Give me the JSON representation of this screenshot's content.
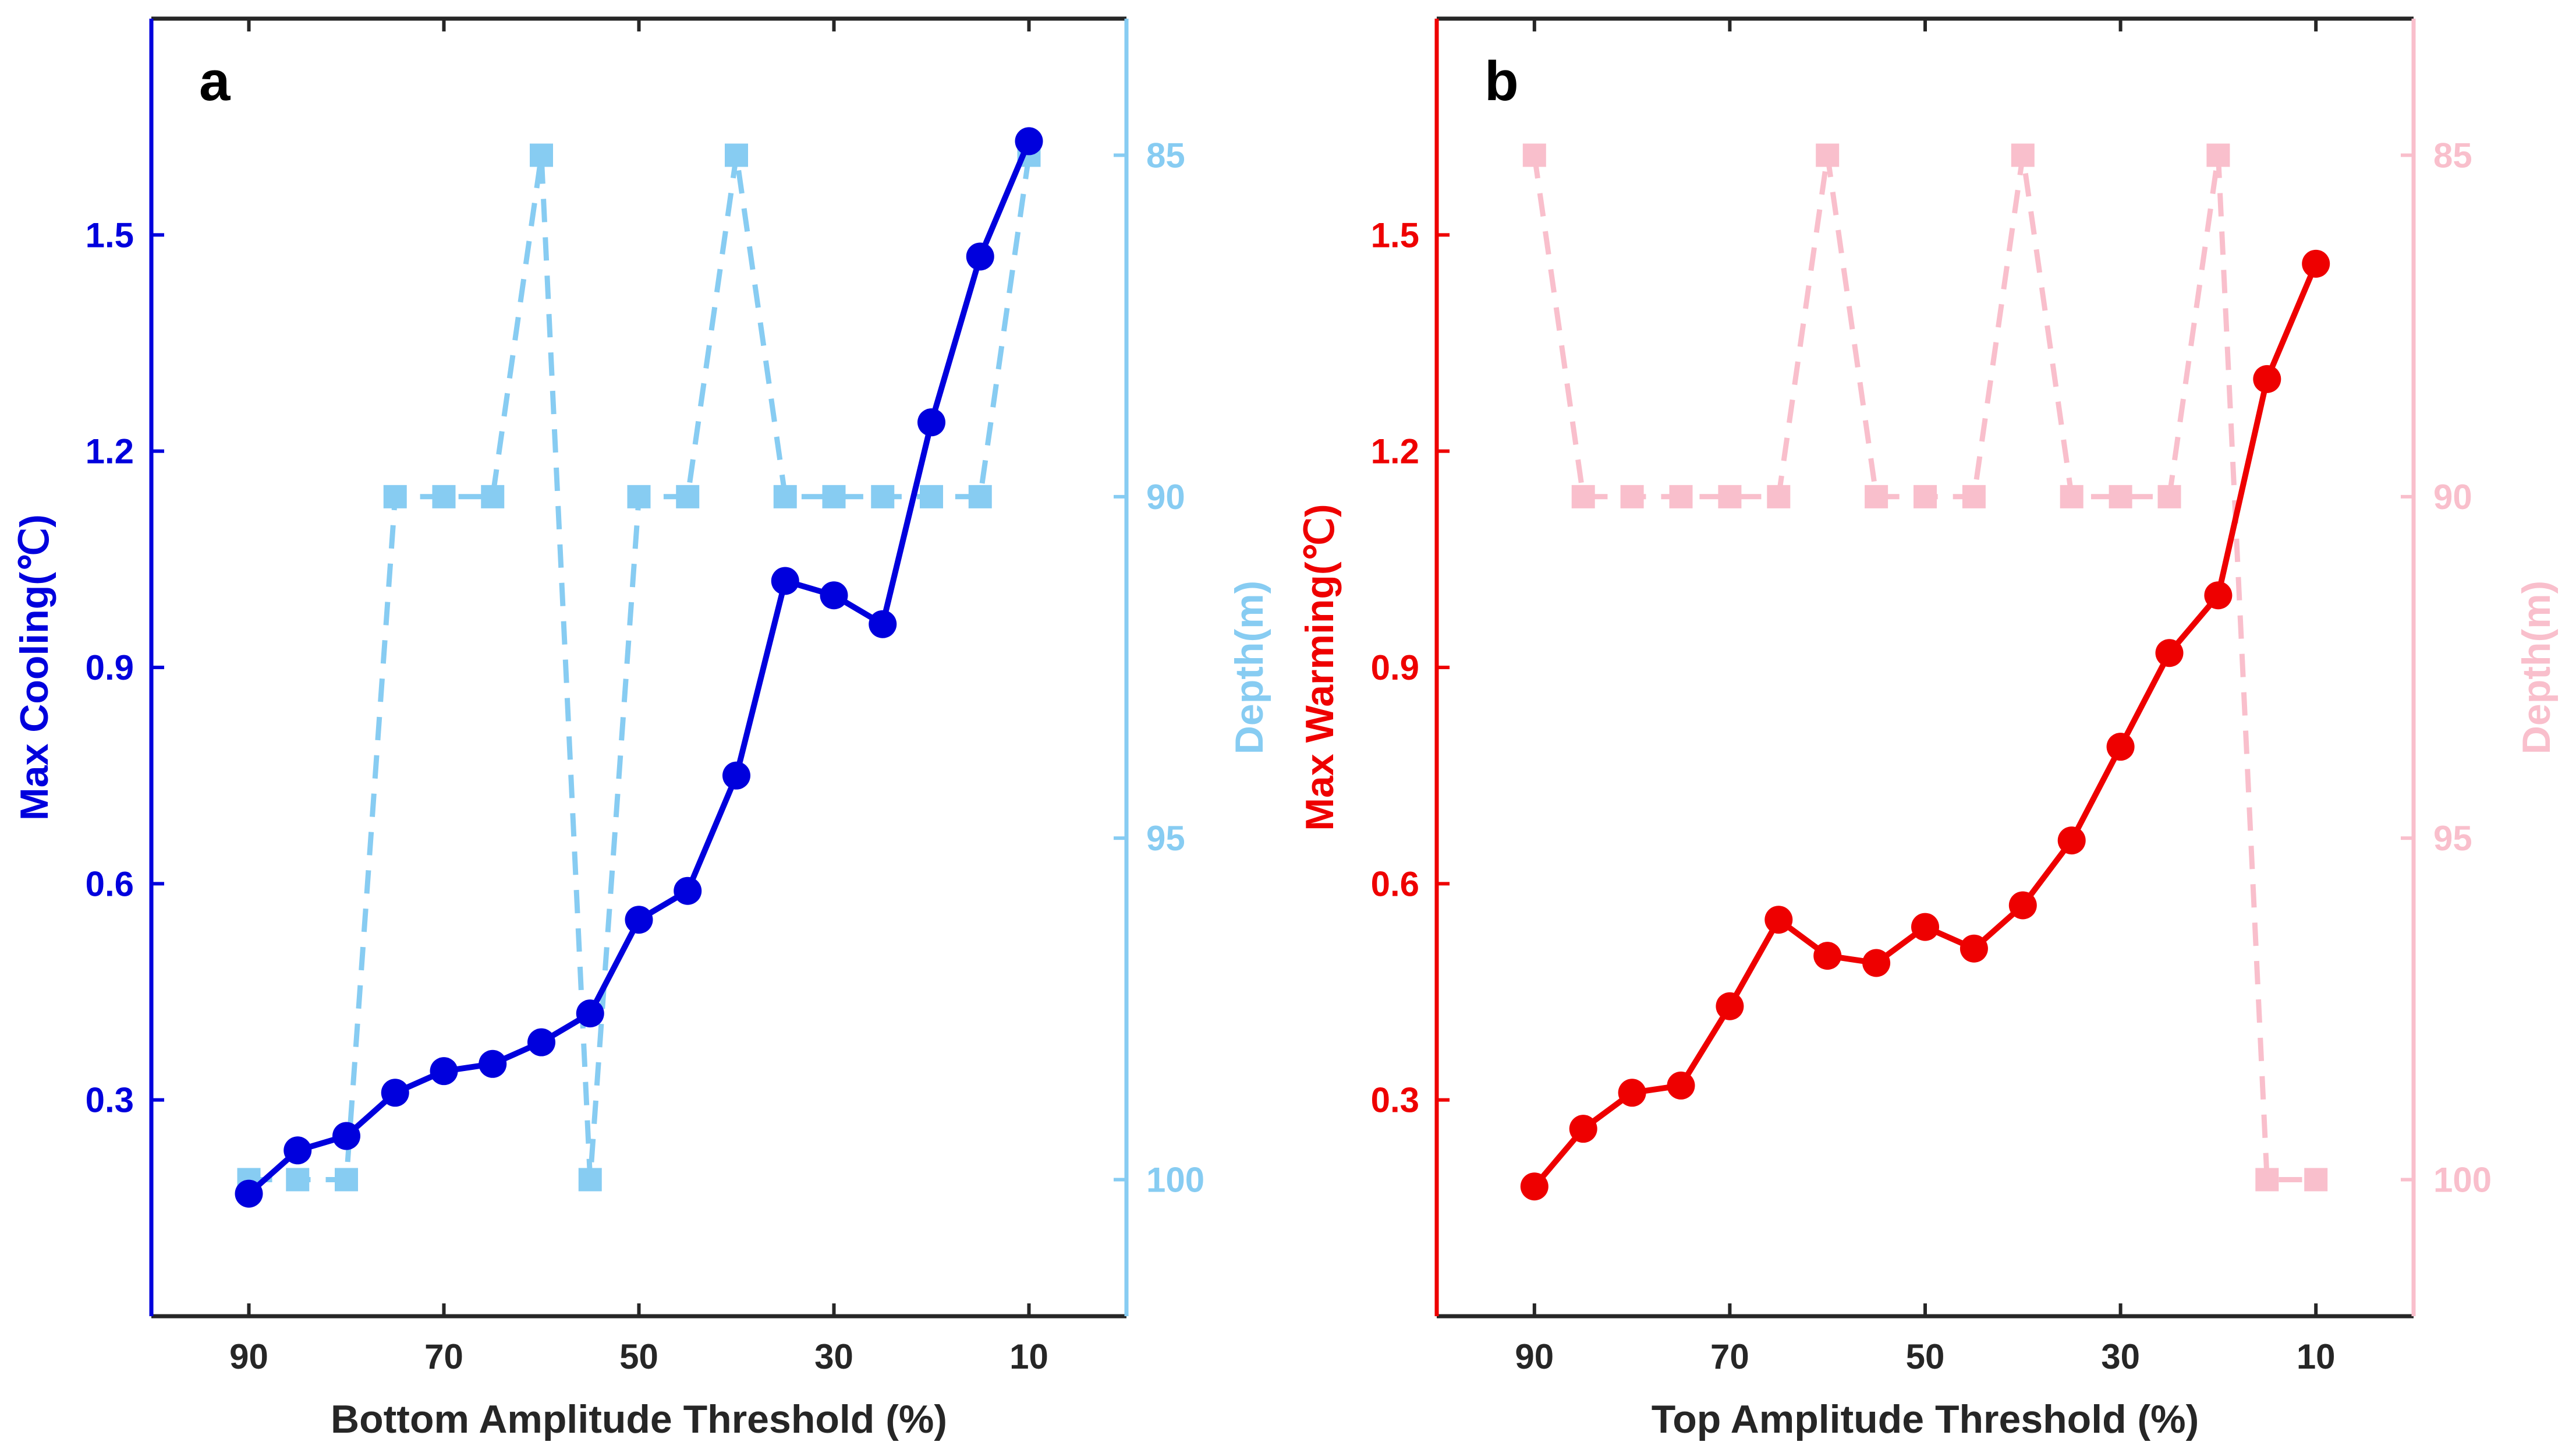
{
  "chart_data": [
    {
      "type": "line",
      "panel_label": "a",
      "xlabel": "Bottom Amplitude Threshold (%)",
      "ylabel_left": "Max Cooling(℃)",
      "ylabel_right": "Depth(m)",
      "xlim": [
        100,
        0
      ],
      "xticks": [
        "90",
        "70",
        "50",
        "30",
        "10"
      ],
      "ylim_left": [
        0,
        1.8
      ],
      "yticks_left": [
        "0.3",
        "0.6",
        "0.9",
        "1.2",
        "1.5"
      ],
      "ylim_right": [
        102,
        83
      ],
      "yticks_right": [
        "85",
        "90",
        "95",
        "100"
      ],
      "left_color": "#0000dd",
      "right_color": "#87ccf2",
      "x": [
        90,
        85,
        80,
        75,
        70,
        65,
        60,
        55,
        50,
        45,
        40,
        35,
        30,
        25,
        20,
        15,
        10
      ],
      "series": [
        {
          "name": "Max Cooling",
          "axis": "left",
          "style": "solid-circle",
          "values": [
            0.17,
            0.23,
            0.25,
            0.31,
            0.34,
            0.35,
            0.38,
            0.42,
            0.55,
            0.59,
            0.75,
            1.02,
            1.0,
            0.96,
            1.24,
            1.47,
            1.63
          ]
        },
        {
          "name": "Depth",
          "axis": "right",
          "style": "dashed-square",
          "values": [
            100,
            100,
            100,
            90,
            90,
            90,
            85,
            100,
            90,
            90,
            85,
            90,
            90,
            90,
            90,
            90,
            85
          ]
        }
      ]
    },
    {
      "type": "line",
      "panel_label": "b",
      "xlabel": "Top Amplitude Threshold (%)",
      "ylabel_left": "Max Warming(℃)",
      "ylabel_right": "Depth(m)",
      "xlim": [
        100,
        0
      ],
      "xticks": [
        "90",
        "70",
        "50",
        "30",
        "10"
      ],
      "ylim_left": [
        0,
        1.8
      ],
      "yticks_left": [
        "0.3",
        "0.6",
        "0.9",
        "1.2",
        "1.5"
      ],
      "ylim_right": [
        102,
        83
      ],
      "yticks_right": [
        "85",
        "90",
        "95",
        "100"
      ],
      "left_color": "#ee0000",
      "right_color": "#f9bfcc",
      "x": [
        90,
        85,
        80,
        75,
        70,
        65,
        60,
        55,
        50,
        45,
        40,
        35,
        30,
        25,
        20,
        15,
        10
      ],
      "series": [
        {
          "name": "Max Warming",
          "axis": "left",
          "style": "solid-circle",
          "values": [
            0.18,
            0.26,
            0.31,
            0.32,
            0.43,
            0.55,
            0.5,
            0.49,
            0.54,
            0.51,
            0.57,
            0.66,
            0.79,
            0.92,
            1.0,
            1.3,
            1.46
          ]
        },
        {
          "name": "Depth",
          "axis": "right",
          "style": "dashed-square",
          "values": [
            85,
            90,
            90,
            90,
            90,
            90,
            85,
            90,
            90,
            90,
            85,
            90,
            90,
            90,
            85,
            100,
            100
          ]
        }
      ]
    }
  ]
}
